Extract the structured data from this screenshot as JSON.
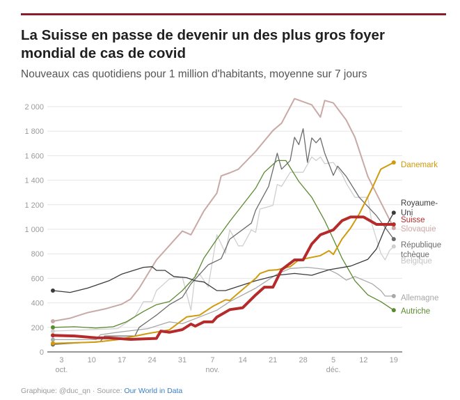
{
  "title": "La Suisse en passe de devenir un des plus gros foyer mondial de cas de covid",
  "subtitle": "Nouveaux cas quotidiens pour 1 million d'habitants, moyenne sur 7 jours",
  "footer": {
    "credit": "Graphique: @duc_qn · Source: ",
    "source_link": "Our World in Data"
  },
  "colors": {
    "accent_bar": "#8c1b2e",
    "link": "#3a7ec8"
  },
  "chart_data": {
    "type": "line",
    "title": "",
    "xlabel": "",
    "ylabel": "",
    "ylim": [
      0,
      2000
    ],
    "xlim": [
      "2020-10-01",
      "2020-12-19"
    ],
    "grid": true,
    "legend": "inline labels at line ends (right)",
    "yticks": [
      0,
      200,
      400,
      600,
      800,
      1000,
      1200,
      1400,
      1600,
      1800,
      2000
    ],
    "ytick_labels": [
      "0",
      "200",
      "400",
      "600",
      "800",
      "1 000",
      "1 200",
      "1 400",
      "1 600",
      "1 800",
      "2 000"
    ],
    "xticks": [
      {
        "date": "2020-10-03",
        "day": "3",
        "month": "oct."
      },
      {
        "date": "2020-10-10",
        "day": "10",
        "month": ""
      },
      {
        "date": "2020-10-17",
        "day": "17",
        "month": ""
      },
      {
        "date": "2020-10-24",
        "day": "24",
        "month": ""
      },
      {
        "date": "2020-10-31",
        "day": "31",
        "month": ""
      },
      {
        "date": "2020-11-07",
        "day": "7",
        "month": "nov."
      },
      {
        "date": "2020-11-14",
        "day": "14",
        "month": ""
      },
      {
        "date": "2020-11-21",
        "day": "21",
        "month": ""
      },
      {
        "date": "2020-11-28",
        "day": "28",
        "month": ""
      },
      {
        "date": "2020-12-05",
        "day": "5",
        "month": "déc."
      },
      {
        "date": "2020-12-12",
        "day": "12",
        "month": ""
      },
      {
        "date": "2020-12-19",
        "day": "19",
        "month": ""
      }
    ],
    "series": [
      {
        "name": "Belgique",
        "color": "#cfcfcf",
        "points": [
          [
            "2020-10-01",
            170
          ],
          [
            "2020-10-16",
            190
          ],
          [
            "2020-10-20",
            285
          ],
          [
            "2020-10-22",
            410
          ],
          [
            "2020-10-24",
            410
          ],
          [
            "2020-10-25",
            500
          ],
          [
            "2020-10-28",
            595
          ],
          [
            "2020-10-31",
            610
          ],
          [
            "2020-11-02",
            340
          ],
          [
            "2020-11-03",
            635
          ],
          [
            "2020-11-04",
            635
          ],
          [
            "2020-11-06",
            530
          ],
          [
            "2020-11-08",
            955
          ],
          [
            "2020-11-10",
            805
          ],
          [
            "2020-11-11",
            995
          ],
          [
            "2020-11-13",
            865
          ],
          [
            "2020-11-14",
            865
          ],
          [
            "2020-11-16",
            995
          ],
          [
            "2020-11-17",
            975
          ],
          [
            "2020-11-18",
            1165
          ],
          [
            "2020-11-21",
            1195
          ],
          [
            "2020-11-22",
            1365
          ],
          [
            "2020-11-23",
            1350
          ],
          [
            "2020-11-25",
            1465
          ],
          [
            "2020-11-28",
            1465
          ],
          [
            "2020-11-30",
            1590
          ],
          [
            "2020-12-01",
            1560
          ],
          [
            "2020-12-02",
            1590
          ],
          [
            "2020-12-03",
            1535
          ],
          [
            "2020-12-05",
            1545
          ],
          [
            "2020-12-07",
            1450
          ],
          [
            "2020-12-08",
            1375
          ],
          [
            "2020-12-10",
            1260
          ],
          [
            "2020-12-13",
            1260
          ],
          [
            "2020-12-14",
            1035
          ],
          [
            "2020-12-16",
            805
          ],
          [
            "2020-12-17",
            750
          ],
          [
            "2020-12-18",
            825
          ],
          [
            "2020-12-19",
            860
          ]
        ]
      },
      {
        "name": "Allemagne",
        "color": "#a8a8a8",
        "points": [
          [
            "2020-10-01",
            100
          ],
          [
            "2020-10-11",
            100
          ],
          [
            "2020-10-12",
            140
          ],
          [
            "2020-10-16",
            160
          ],
          [
            "2020-10-23",
            190
          ],
          [
            "2020-10-28",
            245
          ],
          [
            "2020-10-31",
            230
          ],
          [
            "2020-11-04",
            285
          ],
          [
            "2020-11-08",
            340
          ],
          [
            "2020-11-11",
            410
          ],
          [
            "2020-11-17",
            520
          ],
          [
            "2020-11-22",
            635
          ],
          [
            "2020-11-25",
            680
          ],
          [
            "2020-11-29",
            690
          ],
          [
            "2020-12-04",
            670
          ],
          [
            "2020-12-06",
            635
          ],
          [
            "2020-12-08",
            585
          ],
          [
            "2020-12-10",
            615
          ],
          [
            "2020-12-14",
            555
          ],
          [
            "2020-12-16",
            500
          ],
          [
            "2020-12-17",
            455
          ],
          [
            "2020-12-19",
            455
          ]
        ]
      },
      {
        "name": "Slovaquie",
        "color": "#c9a9a6",
        "points": [
          [
            "2020-10-01",
            250
          ],
          [
            "2020-10-05",
            275
          ],
          [
            "2020-10-09",
            320
          ],
          [
            "2020-10-13",
            350
          ],
          [
            "2020-10-17",
            390
          ],
          [
            "2020-10-19",
            430
          ],
          [
            "2020-10-21",
            520
          ],
          [
            "2020-10-25",
            750
          ],
          [
            "2020-10-31",
            985
          ],
          [
            "2020-11-02",
            955
          ],
          [
            "2020-11-05",
            1150
          ],
          [
            "2020-11-08",
            1295
          ],
          [
            "2020-11-09",
            1435
          ],
          [
            "2020-11-11",
            1460
          ],
          [
            "2020-11-13",
            1490
          ],
          [
            "2020-11-17",
            1635
          ],
          [
            "2020-11-21",
            1805
          ],
          [
            "2020-11-23",
            1865
          ],
          [
            "2020-11-26",
            2065
          ],
          [
            "2020-11-30",
            2015
          ],
          [
            "2020-12-02",
            1915
          ],
          [
            "2020-12-03",
            2050
          ],
          [
            "2020-12-05",
            2030
          ],
          [
            "2020-12-08",
            1890
          ],
          [
            "2020-12-10",
            1750
          ],
          [
            "2020-12-13",
            1430
          ],
          [
            "2020-12-17",
            1150
          ],
          [
            "2020-12-19",
            1010
          ]
        ]
      },
      {
        "name": "Autriche",
        "color": "#5b8a2f",
        "points": [
          [
            "2020-10-01",
            200
          ],
          [
            "2020-10-06",
            205
          ],
          [
            "2020-10-11",
            195
          ],
          [
            "2020-10-15",
            205
          ],
          [
            "2020-10-18",
            245
          ],
          [
            "2020-10-22",
            330
          ],
          [
            "2020-10-25",
            385
          ],
          [
            "2020-10-28",
            410
          ],
          [
            "2020-10-31",
            500
          ],
          [
            "2020-11-03",
            615
          ],
          [
            "2020-11-05",
            765
          ],
          [
            "2020-11-08",
            920
          ],
          [
            "2020-11-11",
            1065
          ],
          [
            "2020-11-17",
            1335
          ],
          [
            "2020-11-19",
            1465
          ],
          [
            "2020-11-22",
            1560
          ],
          [
            "2020-11-24",
            1560
          ],
          [
            "2020-11-27",
            1390
          ],
          [
            "2020-11-30",
            1260
          ],
          [
            "2020-12-03",
            1070
          ],
          [
            "2020-12-05",
            920
          ],
          [
            "2020-12-07",
            765
          ],
          [
            "2020-12-10",
            580
          ],
          [
            "2020-12-13",
            465
          ],
          [
            "2020-12-16",
            410
          ],
          [
            "2020-12-19",
            340
          ]
        ]
      },
      {
        "name": "République tchèque",
        "color": "#6b6b6b",
        "points": [
          [
            "2020-10-01",
            60
          ],
          [
            "2020-10-12",
            85
          ],
          [
            "2020-10-13",
            130
          ],
          [
            "2020-10-20",
            130
          ],
          [
            "2020-10-21",
            200
          ],
          [
            "2020-10-24",
            275
          ],
          [
            "2020-10-25",
            300
          ],
          [
            "2020-10-28",
            385
          ],
          [
            "2020-10-31",
            445
          ],
          [
            "2020-11-02",
            555
          ],
          [
            "2020-11-06",
            710
          ],
          [
            "2020-11-09",
            760
          ],
          [
            "2020-11-11",
            920
          ],
          [
            "2020-11-16",
            1050
          ],
          [
            "2020-11-17",
            1155
          ],
          [
            "2020-11-20",
            1350
          ],
          [
            "2020-11-22",
            1620
          ],
          [
            "2020-11-23",
            1490
          ],
          [
            "2020-11-25",
            1560
          ],
          [
            "2020-11-26",
            1750
          ],
          [
            "2020-11-27",
            1690
          ],
          [
            "2020-11-28",
            1820
          ],
          [
            "2020-11-29",
            1545
          ],
          [
            "2020-11-30",
            1745
          ],
          [
            "2020-12-01",
            1705
          ],
          [
            "2020-12-02",
            1745
          ],
          [
            "2020-12-03",
            1620
          ],
          [
            "2020-12-05",
            1440
          ],
          [
            "2020-12-06",
            1515
          ],
          [
            "2020-12-08",
            1430
          ],
          [
            "2020-12-11",
            1260
          ],
          [
            "2020-12-15",
            1110
          ],
          [
            "2020-12-19",
            920
          ]
        ]
      },
      {
        "name": "Royaume-Uni",
        "color": "#3a3a3a",
        "points": [
          [
            "2020-10-01",
            500
          ],
          [
            "2020-10-05",
            485
          ],
          [
            "2020-10-09",
            520
          ],
          [
            "2020-10-14",
            580
          ],
          [
            "2020-10-17",
            635
          ],
          [
            "2020-10-22",
            690
          ],
          [
            "2020-10-24",
            695
          ],
          [
            "2020-10-25",
            665
          ],
          [
            "2020-10-27",
            665
          ],
          [
            "2020-10-29",
            615
          ],
          [
            "2020-11-01",
            605
          ],
          [
            "2020-11-03",
            580
          ],
          [
            "2020-11-05",
            570
          ],
          [
            "2020-11-08",
            500
          ],
          [
            "2020-11-10",
            500
          ],
          [
            "2020-11-17",
            580
          ],
          [
            "2020-11-22",
            625
          ],
          [
            "2020-11-26",
            640
          ],
          [
            "2020-11-30",
            625
          ],
          [
            "2020-12-04",
            670
          ],
          [
            "2020-12-09",
            700
          ],
          [
            "2020-12-13",
            755
          ],
          [
            "2020-12-15",
            840
          ],
          [
            "2020-12-17",
            1010
          ],
          [
            "2020-12-19",
            1135
          ]
        ]
      },
      {
        "name": "Danemark",
        "color": "#d09a0c",
        "points": [
          [
            "2020-10-01",
            70
          ],
          [
            "2020-10-11",
            80
          ],
          [
            "2020-10-16",
            100
          ],
          [
            "2020-10-23",
            150
          ],
          [
            "2020-10-28",
            180
          ],
          [
            "2020-11-01",
            285
          ],
          [
            "2020-11-04",
            300
          ],
          [
            "2020-11-07",
            370
          ],
          [
            "2020-11-10",
            425
          ],
          [
            "2020-11-11",
            420
          ],
          [
            "2020-11-17",
            600
          ],
          [
            "2020-11-18",
            640
          ],
          [
            "2020-11-20",
            665
          ],
          [
            "2020-11-22",
            670
          ],
          [
            "2020-11-25",
            695
          ],
          [
            "2020-11-27",
            750
          ],
          [
            "2020-12-02",
            785
          ],
          [
            "2020-12-04",
            825
          ],
          [
            "2020-12-05",
            795
          ],
          [
            "2020-12-07",
            920
          ],
          [
            "2020-12-09",
            1010
          ],
          [
            "2020-12-11",
            1125
          ],
          [
            "2020-12-14",
            1335
          ],
          [
            "2020-12-16",
            1490
          ],
          [
            "2020-12-19",
            1545
          ]
        ]
      },
      {
        "name": "Suisse",
        "color": "#b52b2b",
        "points": [
          [
            "2020-10-01",
            135
          ],
          [
            "2020-10-06",
            130
          ],
          [
            "2020-10-11",
            115
          ],
          [
            "2020-10-14",
            114
          ],
          [
            "2020-10-19",
            102
          ],
          [
            "2020-10-25",
            110
          ],
          [
            "2020-10-26",
            170
          ],
          [
            "2020-10-28",
            160
          ],
          [
            "2020-10-31",
            182
          ],
          [
            "2020-11-02",
            227
          ],
          [
            "2020-11-03",
            210
          ],
          [
            "2020-11-05",
            245
          ],
          [
            "2020-11-07",
            245
          ],
          [
            "2020-11-08",
            284
          ],
          [
            "2020-11-11",
            345
          ],
          [
            "2020-11-14",
            360
          ],
          [
            "2020-11-17",
            465
          ],
          [
            "2020-11-19",
            528
          ],
          [
            "2020-11-21",
            528
          ],
          [
            "2020-11-23",
            670
          ],
          [
            "2020-11-26",
            750
          ],
          [
            "2020-11-28",
            750
          ],
          [
            "2020-11-30",
            880
          ],
          [
            "2020-12-02",
            955
          ],
          [
            "2020-12-05",
            995
          ],
          [
            "2020-12-07",
            1070
          ],
          [
            "2020-12-09",
            1100
          ],
          [
            "2020-12-12",
            1100
          ],
          [
            "2020-12-15",
            1040
          ],
          [
            "2020-12-19",
            1040
          ]
        ]
      }
    ]
  }
}
